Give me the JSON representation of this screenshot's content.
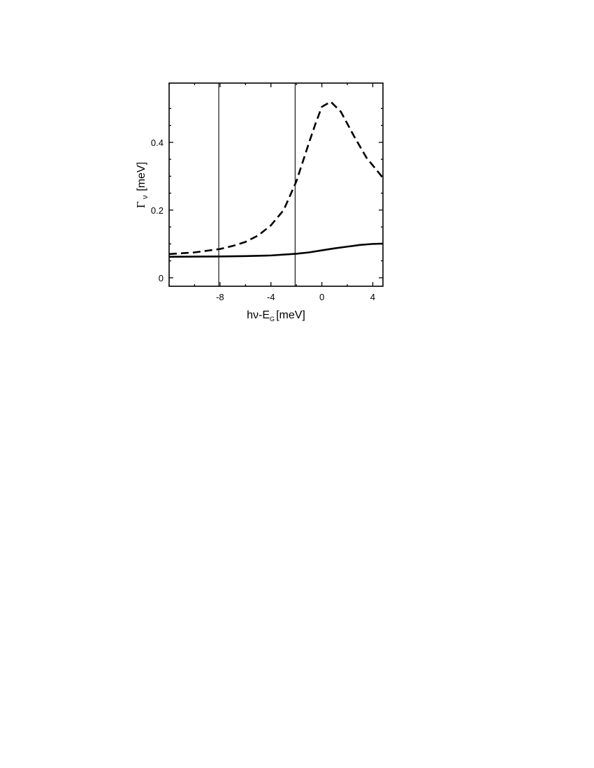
{
  "chart_data": {
    "type": "line",
    "xlabel": {
      "main": "hν-E",
      "sub": "G",
      "unit": "[meV]"
    },
    "ylabel": {
      "main": "Γ",
      "sub": "ν",
      "unit": "[meV]"
    },
    "xlim": [
      -12,
      4.8
    ],
    "ylim": [
      -0.025,
      0.575
    ],
    "xticks": [
      -8,
      -4,
      0,
      4
    ],
    "xtick_labels": [
      "-8",
      "-4",
      "0",
      "4"
    ],
    "yticks": [
      0,
      0.2,
      0.4
    ],
    "ytick_labels": [
      "0",
      "0.2",
      "0.4"
    ],
    "vertical_lines": [
      -8.1,
      -2.1
    ],
    "grid": false,
    "legend": "none",
    "series": [
      {
        "style": "dashed",
        "x": [
          -12,
          -10,
          -8,
          -7,
          -6,
          -5,
          -4,
          -3,
          -2,
          -1,
          -0.5,
          0,
          0.7,
          1.5,
          2.5,
          3.5,
          4.8
        ],
        "y": [
          0.07,
          0.075,
          0.085,
          0.094,
          0.106,
          0.125,
          0.155,
          0.2,
          0.285,
          0.4,
          0.455,
          0.505,
          0.52,
          0.49,
          0.42,
          0.355,
          0.295
        ]
      },
      {
        "style": "solid",
        "x": [
          -12,
          -8,
          -6,
          -4,
          -2,
          -1,
          0,
          1,
          2,
          3,
          4,
          4.8
        ],
        "y": [
          0.062,
          0.063,
          0.064,
          0.066,
          0.071,
          0.075,
          0.081,
          0.087,
          0.092,
          0.097,
          0.1,
          0.101
        ]
      }
    ]
  }
}
